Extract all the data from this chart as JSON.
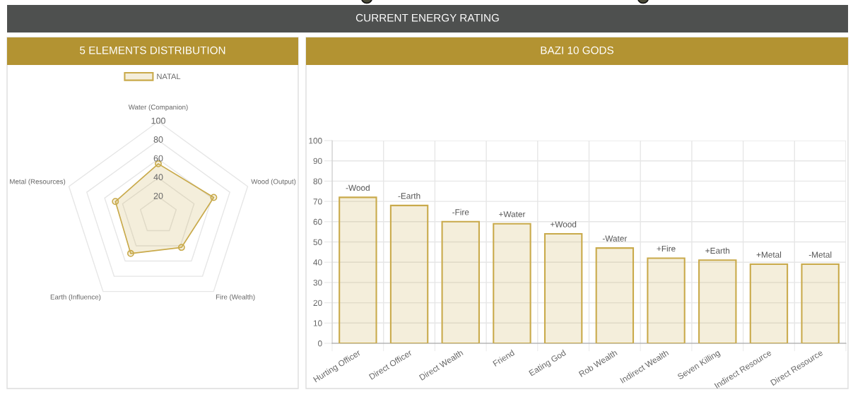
{
  "chart_data": [
    {
      "type": "other",
      "title": "CURRENT ENERGY RATING"
    },
    {
      "type": "radar",
      "title": "5 ELEMENTS DISTRIBUTION",
      "categories": [
        "Water (Companion)",
        "Wood (Output)",
        "Fire (Wealth)",
        "Earth (Influence)",
        "Metal (Resources)"
      ],
      "series": [
        {
          "name": "NATAL",
          "color": "#c9aa4b",
          "values": [
            55,
            62,
            42,
            50,
            48
          ]
        }
      ],
      "ylim": [
        0,
        100
      ],
      "yticks": [
        20,
        40,
        60,
        80,
        100
      ],
      "grid": true,
      "legend": "top",
      "marker": "circle"
    },
    {
      "type": "bar",
      "title": "BAZI 10 GODS",
      "categories": [
        "Hurting Officer",
        "Direct Officer",
        "Direct Wealth",
        "Friend",
        "Eating God",
        "Rob Wealth",
        "Indirect Wealth",
        "Seven Killing",
        "Indirect Resource",
        "Direct Resource"
      ],
      "values": [
        72,
        68,
        60,
        59,
        54,
        47,
        42,
        41,
        39,
        39
      ],
      "color": "#c9aa4b",
      "value_labels": [
        "-Wood",
        "-Earth",
        "-Fire",
        "+Water",
        "+Wood",
        "-Water",
        "+Fire",
        "+Earth",
        "+Metal",
        "-Metal"
      ],
      "ylim": [
        0,
        100
      ],
      "yticks": [
        0,
        10,
        20,
        30,
        40,
        50,
        60,
        70,
        80,
        90,
        100
      ],
      "grid": true
    }
  ]
}
